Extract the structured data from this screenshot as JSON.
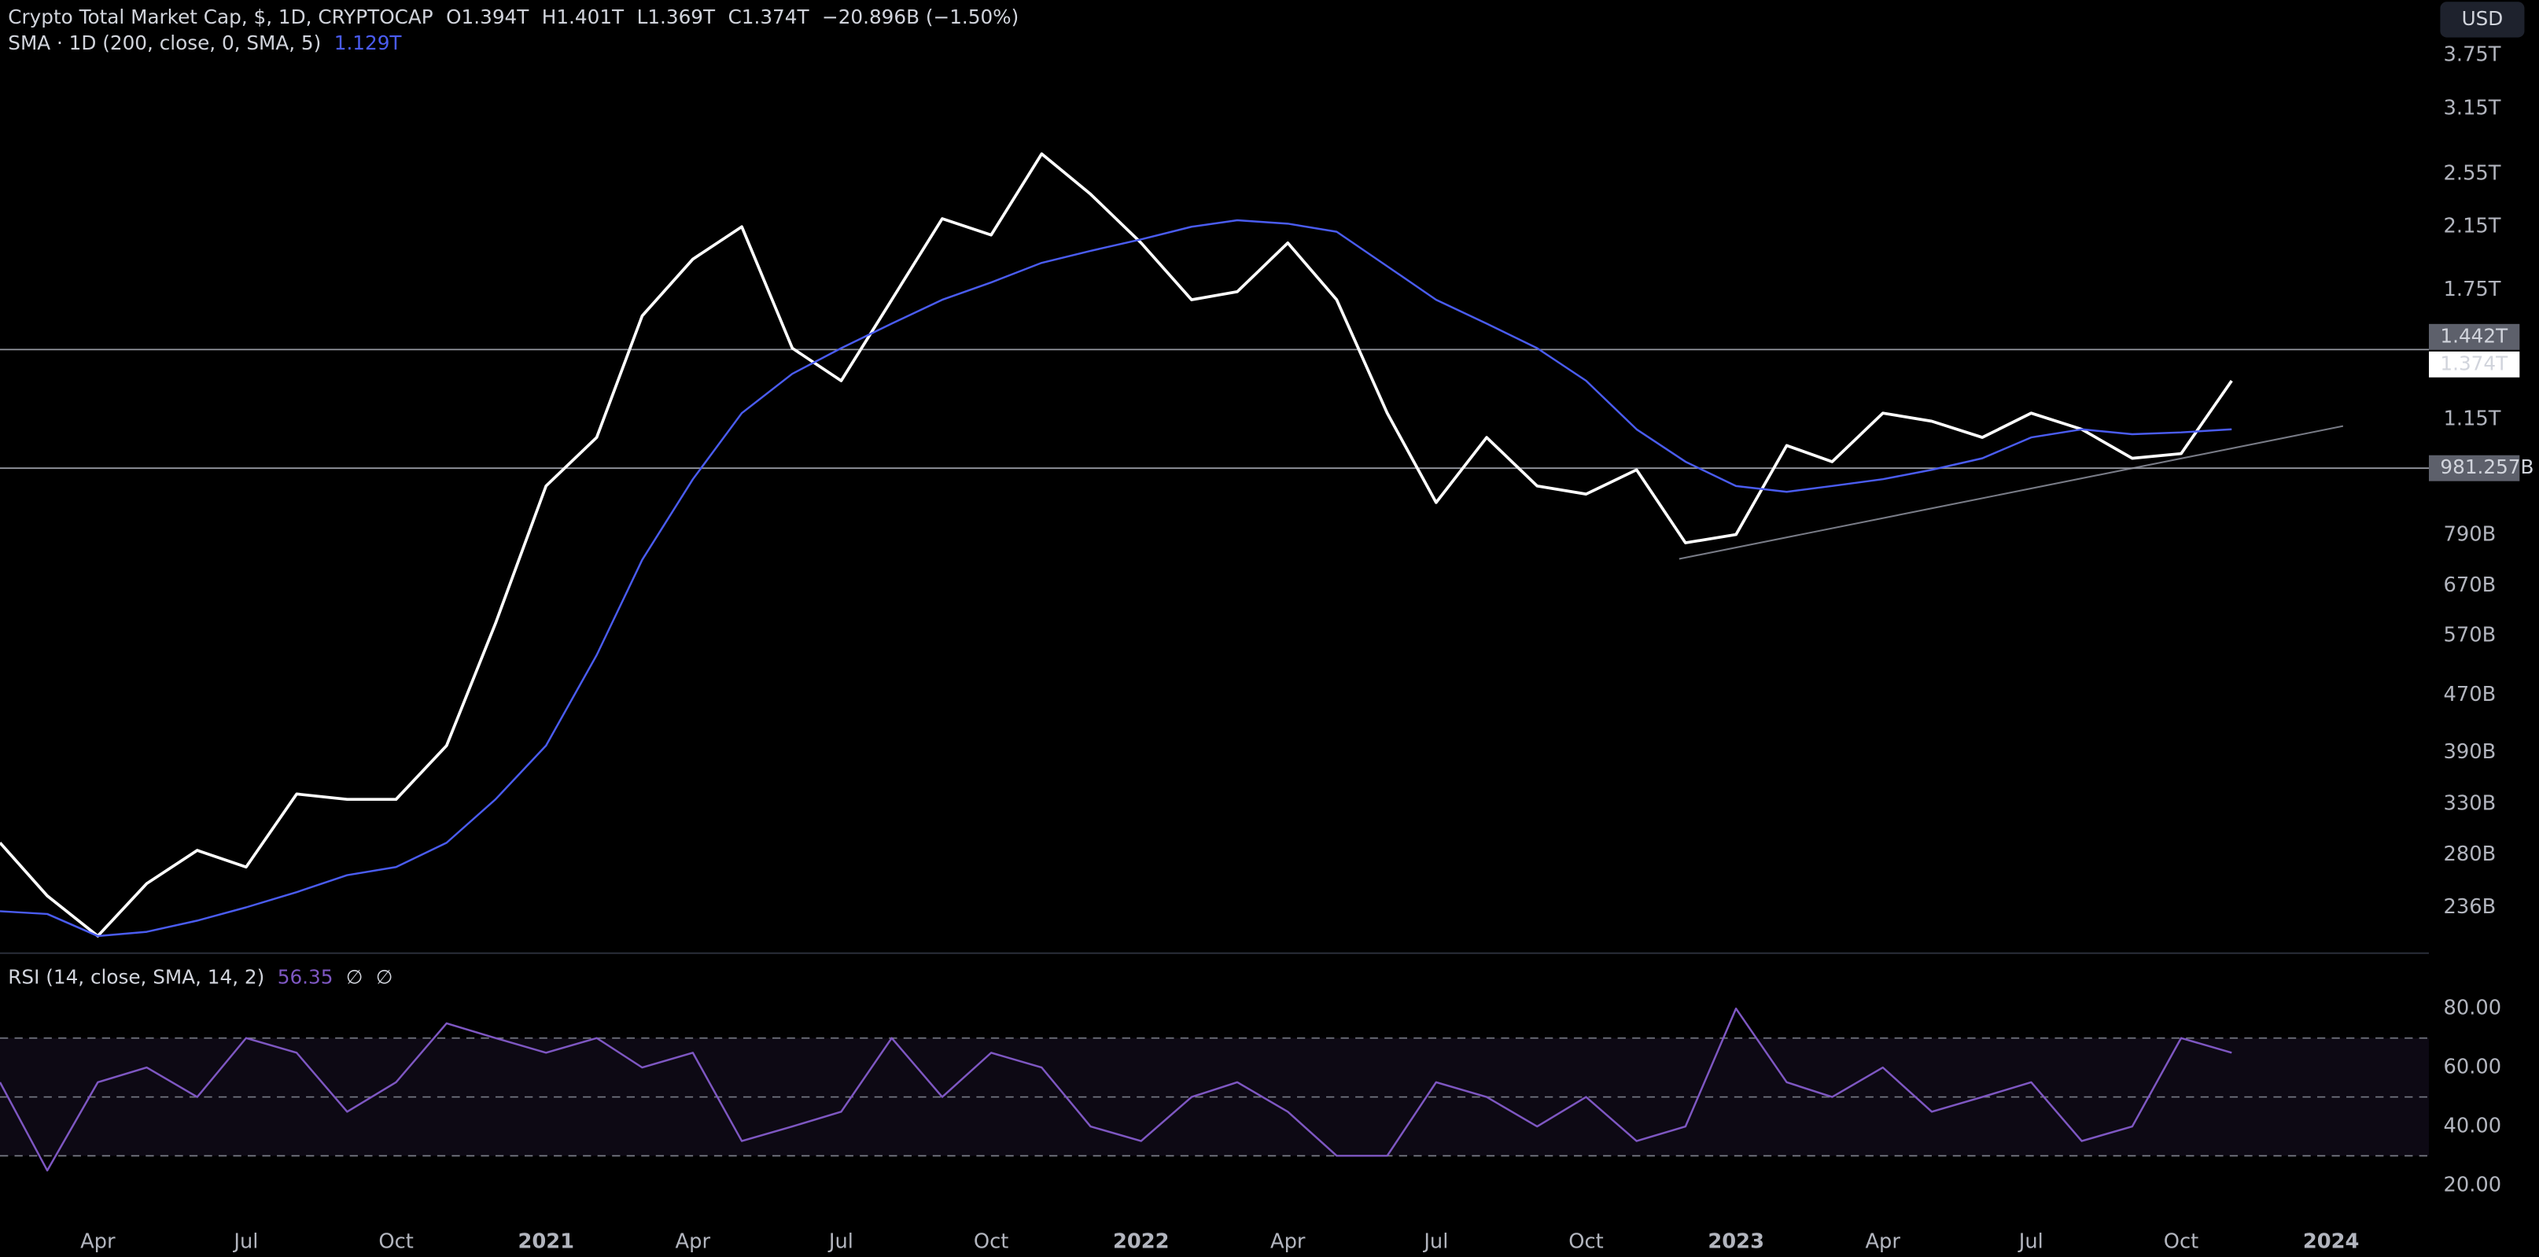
{
  "chart_data": [
    {
      "type": "line",
      "title": "Crypto Total Market Cap, $, 1D, CRYPTOCAP",
      "ohlc": [
        "O1.394T",
        "H1.401T",
        "L1.369T",
        "C1.374T"
      ],
      "change": "−20.896B (−1.50%)",
      "currency": "USD",
      "log": true,
      "grid": false,
      "x": [
        "2020-02",
        "2020-03",
        "2020-04",
        "2020-05",
        "2020-06",
        "2020-07",
        "2020-08",
        "2020-09",
        "2020-10",
        "2020-11",
        "2020-12",
        "2021-01",
        "2021-02",
        "2021-03",
        "2021-04",
        "2021-05",
        "2021-06",
        "2021-07",
        "2021-08",
        "2021-09",
        "2021-10",
        "2021-11",
        "2021-12",
        "2022-01",
        "2022-02",
        "2022-03",
        "2022-04",
        "2022-05",
        "2022-06",
        "2022-07",
        "2022-08",
        "2022-09",
        "2022-10",
        "2022-11",
        "2022-12",
        "2023-01",
        "2023-02",
        "2023-03",
        "2023-04",
        "2023-05",
        "2023-06",
        "2023-07",
        "2023-08",
        "2023-09",
        "2023-10",
        "2023-11"
      ],
      "xlim": [
        "2020-02",
        "2024-03"
      ],
      "ylim": [
        205,
        4480
      ],
      "yticks": [
        {
          "value": 3750,
          "label": "3.75T"
        },
        {
          "value": 3150,
          "label": "3.15T"
        },
        {
          "value": 2550,
          "label": "2.55T"
        },
        {
          "value": 2150,
          "label": "2.15T"
        },
        {
          "value": 1750,
          "label": "1.75T"
        },
        {
          "value": 1150,
          "label": "1.15T"
        },
        {
          "value": 790,
          "label": "790B"
        },
        {
          "value": 670,
          "label": "670B"
        },
        {
          "value": 570,
          "label": "570B"
        },
        {
          "value": 470,
          "label": "470B"
        },
        {
          "value": 390,
          "label": "390B"
        },
        {
          "value": 330,
          "label": "330B"
        },
        {
          "value": 280,
          "label": "280B"
        },
        {
          "value": 236,
          "label": "236B"
        }
      ],
      "hlines": [
        {
          "value": 1442,
          "label": "1.442T"
        },
        {
          "value": 981.257,
          "label": "981.257B"
        }
      ],
      "last_price": {
        "value": 1374,
        "label": "1.374T"
      },
      "series": [
        {
          "color": "#ffffff",
          "values": [
            291,
            245,
            215,
            255,
            284,
            269,
            341,
            335,
            335,
            399,
            593,
            926,
            1084,
            1609,
            1934,
            2148,
            1448,
            1303,
            1695,
            2205,
            2091,
            2721,
            2387,
            2038,
            1695,
            1740,
            2038,
            1695,
            1173,
            878,
            1084,
            926,
            902,
            976,
            770,
            791,
            1056,
            1002,
            1173,
            1143,
            1084,
            1173,
            1113,
            1013,
            1029,
            1303
          ]
        },
        {
          "name": "SMA · 1D (200, close, 0, SMA, 5)",
          "legend_value": "1.129T",
          "color": "#4a5cf0",
          "values": [
            233,
            231,
            215,
            218,
            226,
            236,
            248,
            262,
            269,
            291,
            335,
            399,
            535,
            729,
            947,
            1173,
            1333,
            1448,
            1569,
            1695,
            1793,
            1910,
            1986,
            2062,
            2148,
            2194,
            2170,
            2113,
            1890,
            1695,
            1569,
            1448,
            1303,
            1113,
            1002,
            926,
            909,
            926,
            947,
            976,
            1013,
            1084,
            1113,
            1096,
            1102,
            1113
          ]
        }
      ]
    },
    {
      "type": "line",
      "title": "RSI (14, close, SMA, 14, 2)",
      "legend_value": "56.35",
      "markers": [
        "∅",
        "∅"
      ],
      "x": [
        "2020-02",
        "2020-03",
        "2020-04",
        "2020-05",
        "2020-06",
        "2020-07",
        "2020-08",
        "2020-09",
        "2020-10",
        "2020-11",
        "2020-12",
        "2021-01",
        "2021-02",
        "2021-03",
        "2021-04",
        "2021-05",
        "2021-06",
        "2021-07",
        "2021-08",
        "2021-09",
        "2021-10",
        "2021-11",
        "2021-12",
        "2022-01",
        "2022-02",
        "2022-03",
        "2022-04",
        "2022-05",
        "2022-06",
        "2022-07",
        "2022-08",
        "2022-09",
        "2022-10",
        "2022-11",
        "2022-12",
        "2023-01",
        "2023-02",
        "2023-03",
        "2023-04",
        "2023-05",
        "2023-06",
        "2023-07",
        "2023-08",
        "2023-09",
        "2023-10",
        "2023-11"
      ],
      "xlim": [
        "2020-02",
        "2024-03"
      ],
      "xticks": [
        {
          "value": "2020-04",
          "label": "Apr"
        },
        {
          "value": "2020-07",
          "label": "Jul"
        },
        {
          "value": "2020-10",
          "label": "Oct"
        },
        {
          "value": "2021-01",
          "label": "2021"
        },
        {
          "value": "2021-04",
          "label": "Apr"
        },
        {
          "value": "2021-07",
          "label": "Jul"
        },
        {
          "value": "2021-10",
          "label": "Oct"
        },
        {
          "value": "2022-01",
          "label": "2022"
        },
        {
          "value": "2022-04",
          "label": "Apr"
        },
        {
          "value": "2022-07",
          "label": "Jul"
        },
        {
          "value": "2022-10",
          "label": "Oct"
        },
        {
          "value": "2023-01",
          "label": "2023"
        },
        {
          "value": "2023-04",
          "label": "Apr"
        },
        {
          "value": "2023-07",
          "label": "Jul"
        },
        {
          "value": "2023-10",
          "label": "Oct"
        },
        {
          "value": "2024-01",
          "label": "2024"
        }
      ],
      "ylim": [
        10,
        98
      ],
      "yticks": [
        {
          "value": 80,
          "label": "80.00"
        },
        {
          "value": 60,
          "label": "60.00"
        },
        {
          "value": 40,
          "label": "40.00"
        },
        {
          "value": 20,
          "label": "20.00"
        }
      ],
      "levels": [
        30,
        50,
        70
      ],
      "series": [
        {
          "color": "#7e57c2",
          "values": [
            55,
            25,
            55,
            60,
            50,
            70,
            65,
            45,
            55,
            75,
            70,
            65,
            70,
            60,
            65,
            35,
            40,
            45,
            70,
            50,
            65,
            60,
            40,
            35,
            50,
            55,
            45,
            30,
            30,
            55,
            50,
            40,
            50,
            35,
            40,
            80,
            55,
            50,
            60,
            45,
            50,
            55,
            35,
            40,
            70,
            65
          ]
        }
      ]
    }
  ]
}
